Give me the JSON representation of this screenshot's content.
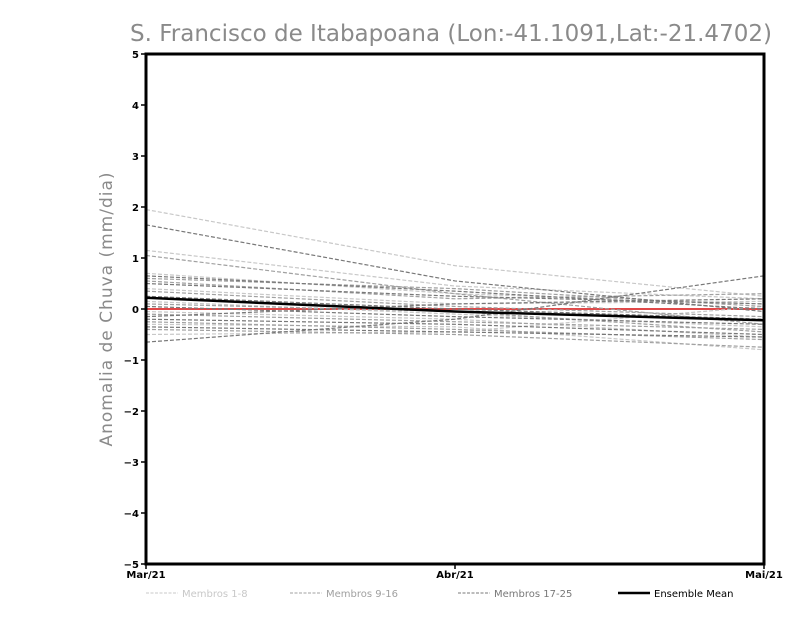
{
  "chart_data": {
    "type": "line",
    "title": "S. Francisco de Itabapoana (Lon:-41.1091,Lat:-21.4702)",
    "xlabel": "",
    "ylabel": "Anomalia de Chuva (mm/dia)",
    "categories": [
      "Mar/21",
      "Abr/21",
      "Mai/21"
    ],
    "ylim": [
      -5,
      5
    ],
    "yticks": [
      "5",
      "4",
      "3",
      "2",
      "1",
      "0",
      "-1",
      "-2",
      "-3",
      "-4",
      "-5"
    ],
    "grid": false,
    "legend_position": "bottom",
    "legend": [
      {
        "label": "Membros 1-8",
        "color": "#c8c8c8",
        "style": "dashed"
      },
      {
        "label": "Membros 9-16",
        "color": "#a0a0a0",
        "style": "dashed"
      },
      {
        "label": "Membros 17-25",
        "color": "#787878",
        "style": "dashed"
      },
      {
        "label": "Ensemble Mean",
        "color": "#000000",
        "style": "solid"
      }
    ],
    "zero_line_color": "#e04848",
    "series_groups": [
      {
        "legend_index": 0,
        "color": "#c8c8c8",
        "members": [
          [
            1.95,
            0.85,
            0.25
          ],
          [
            1.15,
            0.45,
            0.2
          ],
          [
            0.7,
            0.3,
            0.1
          ],
          [
            0.4,
            0.1,
            0.15
          ],
          [
            0.15,
            -0.1,
            -0.35
          ],
          [
            -0.05,
            -0.2,
            -0.55
          ],
          [
            -0.3,
            -0.35,
            -0.8
          ],
          [
            -0.5,
            -0.45,
            0.05
          ]
        ]
      },
      {
        "legend_index": 1,
        "color": "#a0a0a0",
        "members": [
          [
            1.05,
            0.3,
            -0.3
          ],
          [
            0.6,
            0.4,
            0.05
          ],
          [
            0.35,
            0.05,
            -0.15
          ],
          [
            0.1,
            -0.05,
            -0.45
          ],
          [
            -0.1,
            -0.25,
            -0.4
          ],
          [
            -0.25,
            -0.4,
            -0.6
          ],
          [
            -0.4,
            -0.5,
            -0.75
          ],
          [
            0.55,
            0.2,
            0.3
          ]
        ]
      },
      {
        "legend_index": 2,
        "color": "#787878",
        "members": [
          [
            1.65,
            0.55,
            -0.05
          ],
          [
            0.65,
            0.35,
            0.0
          ],
          [
            0.5,
            0.25,
            0.1
          ],
          [
            0.25,
            0.0,
            -0.2
          ],
          [
            0.05,
            -0.15,
            -0.3
          ],
          [
            -0.2,
            -0.3,
            -0.5
          ],
          [
            -0.35,
            -0.45,
            -0.55
          ],
          [
            -0.65,
            -0.2,
            0.65
          ],
          [
            -0.15,
            0.1,
            0.2
          ]
        ]
      }
    ],
    "ensemble_mean": [
      0.22,
      -0.05,
      -0.22
    ]
  }
}
